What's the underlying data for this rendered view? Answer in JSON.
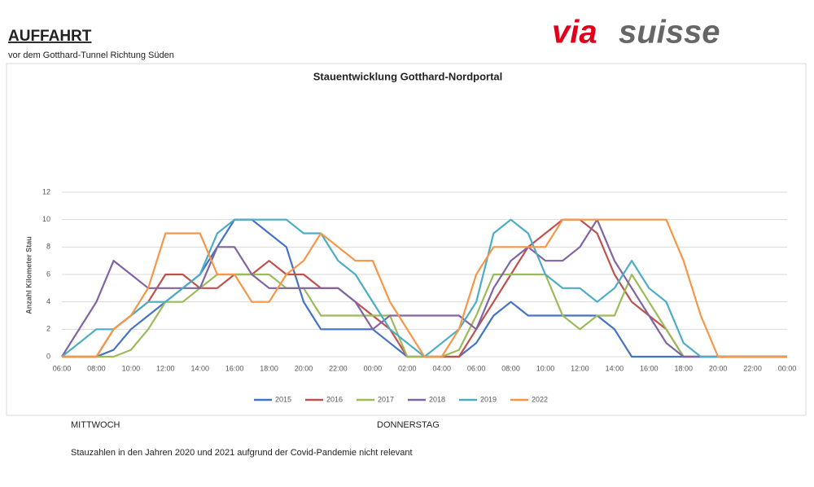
{
  "header": {
    "title": "AUFFAHRT",
    "subtitle": "vor dem Gotthard-Tunnel Richtung Süden",
    "logo": [
      "via",
      "suisse"
    ]
  },
  "chart_data": {
    "type": "line",
    "title": "Stauentwicklung Gotthard-Nordportal",
    "y_label": "Anzahl Kilometer Stau",
    "categories": [
      "06:00",
      null,
      "08:00",
      null,
      "10:00",
      null,
      "12:00",
      null,
      "14:00",
      null,
      "16:00",
      null,
      "18:00",
      null,
      "20:00",
      null,
      "22:00",
      null,
      "00:00",
      null,
      "02:00",
      null,
      "04:00",
      null,
      "06:00",
      null,
      "08:00",
      null,
      "10:00",
      null,
      "12:00",
      null,
      "14:00",
      null,
      "16:00",
      null,
      "18:00",
      null,
      "20:00",
      null,
      "22:00",
      null,
      "00:00"
    ],
    "ylim": [
      0,
      12
    ],
    "yticks": [
      0,
      2,
      4,
      6,
      8,
      10,
      12
    ],
    "grid": true,
    "legend": "bottom",
    "series": [
      {
        "name": "2015",
        "color": "#4472c4",
        "values": [
          0,
          0,
          0,
          0.5,
          2,
          3,
          4,
          5,
          6,
          8,
          10,
          10,
          9,
          8,
          4,
          2,
          2,
          2,
          2,
          1,
          0,
          0,
          0,
          0,
          1,
          3,
          4,
          3,
          3,
          3,
          3,
          3,
          2,
          0,
          0,
          0,
          0,
          0,
          0,
          0,
          0,
          0,
          0
        ]
      },
      {
        "name": "2016",
        "color": "#c0504d",
        "values": [
          0,
          0,
          0,
          2,
          3,
          4,
          6,
          6,
          5,
          5,
          6,
          6,
          7,
          6,
          6,
          5,
          5,
          4,
          3,
          2,
          0,
          0,
          0,
          0,
          2,
          4,
          6,
          8,
          9,
          10,
          10,
          9,
          6,
          4,
          3,
          2,
          0,
          0,
          0,
          0,
          0,
          0,
          0
        ]
      },
      {
        "name": "2017",
        "color": "#9bbb59",
        "values": [
          0,
          0,
          0,
          0,
          0.5,
          2,
          4,
          4,
          5,
          6,
          6,
          6,
          6,
          5,
          5,
          3,
          3,
          3,
          3,
          3,
          0,
          0,
          0,
          0.5,
          3,
          6,
          6,
          6,
          6,
          3,
          2,
          3,
          3,
          6,
          4,
          2,
          0,
          0,
          0,
          0,
          0,
          0,
          0
        ]
      },
      {
        "name": "2018",
        "color": "#8064a2",
        "values": [
          0,
          2,
          4,
          7,
          6,
          5,
          5,
          5,
          5,
          8,
          8,
          6,
          5,
          5,
          5,
          5,
          5,
          4,
          2,
          3,
          3,
          3,
          3,
          3,
          2,
          5,
          7,
          8,
          7,
          7,
          8,
          10,
          7,
          5,
          3,
          1,
          0,
          0,
          0,
          0,
          0,
          0,
          0
        ]
      },
      {
        "name": "2019",
        "color": "#4bacc6",
        "values": [
          0,
          1,
          2,
          2,
          3,
          4,
          4,
          5,
          6,
          9,
          10,
          10,
          10,
          10,
          9,
          9,
          7,
          6,
          4,
          2,
          1,
          0,
          1,
          2,
          4,
          9,
          10,
          9,
          6,
          5,
          5,
          4,
          5,
          7,
          5,
          4,
          1,
          0,
          0,
          0,
          0,
          0,
          0
        ]
      },
      {
        "name": "2022",
        "color": "#f79646",
        "values": [
          0,
          0,
          0,
          2,
          3,
          5,
          9,
          9,
          9,
          6,
          6,
          4,
          4,
          6,
          7,
          9,
          8,
          7,
          7,
          4,
          2,
          0,
          0,
          2,
          6,
          8,
          8,
          8,
          8,
          10,
          10,
          10,
          10,
          10,
          10,
          10,
          7,
          3,
          0,
          0,
          0,
          0,
          0
        ]
      }
    ]
  },
  "footer": {
    "days": [
      "MITTWOCH",
      "DONNERSTAG"
    ],
    "note": "Stauzahlen in den Jahren 2020 und 2021 aufgrund der Covid-Pandemie nicht relevant"
  }
}
